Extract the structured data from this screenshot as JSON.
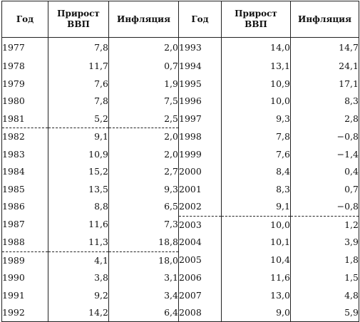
{
  "table": {
    "headers": [
      "Год",
      "Прирост\nВВП",
      "Инфляция",
      "Год",
      "Прирост\nВВП",
      "Инфляция"
    ],
    "left_rows": [
      [
        "1977",
        "7,8",
        "2,0"
      ],
      [
        "1978",
        "11,7",
        "0,7"
      ],
      [
        "1979",
        "7,6",
        "1,9"
      ],
      [
        "1980",
        "7,8",
        "7,5"
      ],
      [
        "1981",
        "5,2",
        "2,5"
      ],
      [
        "1982",
        "9,1",
        "2,0"
      ],
      [
        "1983",
        "10,9",
        "2,0"
      ],
      [
        "1984",
        "15,2",
        "2,7"
      ],
      [
        "1985",
        "13,5",
        "9,3"
      ],
      [
        "1986",
        "8,8",
        "6,5"
      ],
      [
        "1987",
        "11,6",
        "7,3"
      ],
      [
        "1988",
        "11,3",
        "18,8"
      ],
      [
        "1989",
        "4,1",
        "18,0"
      ],
      [
        "1990",
        "3,8",
        "3,1"
      ],
      [
        "1991",
        "9,2",
        "3,4"
      ],
      [
        "1992",
        "14,2",
        "6,4"
      ]
    ],
    "right_rows": [
      [
        "1993",
        "14,0",
        "14,7"
      ],
      [
        "1994",
        "13,1",
        "24,1"
      ],
      [
        "1995",
        "10,9",
        "17,1"
      ],
      [
        "1996",
        "10,0",
        "8,3"
      ],
      [
        "1997",
        "9,3",
        "2,8"
      ],
      [
        "1998",
        "7,8",
        "−0,8"
      ],
      [
        "1999",
        "7,6",
        "−1,4"
      ],
      [
        "2000",
        "8,4",
        "0,4"
      ],
      [
        "2001",
        "8,3",
        "0,7"
      ],
      [
        "2002",
        "9,1",
        "−0,8"
      ],
      [
        "2003",
        "10,0",
        "1,2"
      ],
      [
        "2004",
        "10,1",
        "3,9"
      ],
      [
        "2005",
        "10,4",
        "1,8"
      ],
      [
        "2006",
        "11,6",
        "1,5"
      ],
      [
        "2007",
        "13,0",
        "4,8"
      ],
      [
        "2008",
        "9,0",
        "5,9"
      ]
    ]
  }
}
